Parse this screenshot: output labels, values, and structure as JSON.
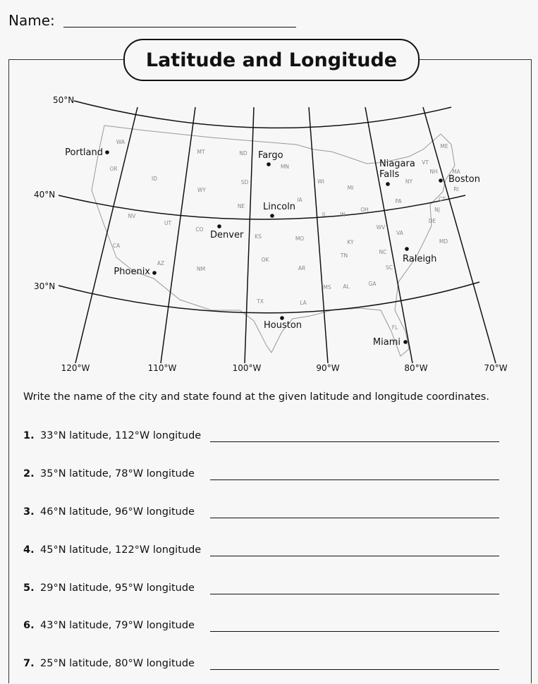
{
  "header": {
    "name_label": "Name:",
    "title": "Latitude and Longitude"
  },
  "map": {
    "latitudes": [
      "50°N",
      "40°N",
      "30°N"
    ],
    "longitudes": [
      "120°W",
      "110°W",
      "100°W",
      "90°W",
      "80°W",
      "70°W"
    ],
    "cities": [
      "Portland",
      "Fargo",
      "Lincoln",
      "Denver",
      "Phoenix",
      "Houston",
      "Niagara Falls",
      "Boston",
      "Raleigh",
      "Miami"
    ],
    "states": [
      "WA",
      "OR",
      "ID",
      "MT",
      "ND",
      "MN",
      "SD",
      "WY",
      "NE",
      "IA",
      "WI",
      "MI",
      "NV",
      "UT",
      "CO",
      "KS",
      "MO",
      "IL",
      "IN",
      "OH",
      "PA",
      "NY",
      "VT",
      "NH",
      "MA",
      "RI",
      "CT",
      "NJ",
      "DE",
      "MD",
      "ME",
      "WV",
      "VA",
      "KY",
      "TN",
      "NC",
      "SC",
      "CA",
      "AZ",
      "NM",
      "OK",
      "AR",
      "TX",
      "LA",
      "MS",
      "AL",
      "GA",
      "FL"
    ]
  },
  "instructions": "Write the name of the city and state found at the given latitude and longitude coordinates.",
  "questions": [
    {
      "num": "1.",
      "text": "33°N latitude, 112°W longitude"
    },
    {
      "num": "2.",
      "text": "35°N latitude, 78°W longitude"
    },
    {
      "num": "3.",
      "text": "46°N latitude, 96°W longitude"
    },
    {
      "num": "4.",
      "text": "45°N latitude, 122°W longitude"
    },
    {
      "num": "5.",
      "text": "29°N latitude, 95°W longitude"
    },
    {
      "num": "6.",
      "text": "43°N latitude, 79°W longitude"
    },
    {
      "num": "7.",
      "text": "25°N latitude, 80°W longitude"
    }
  ]
}
